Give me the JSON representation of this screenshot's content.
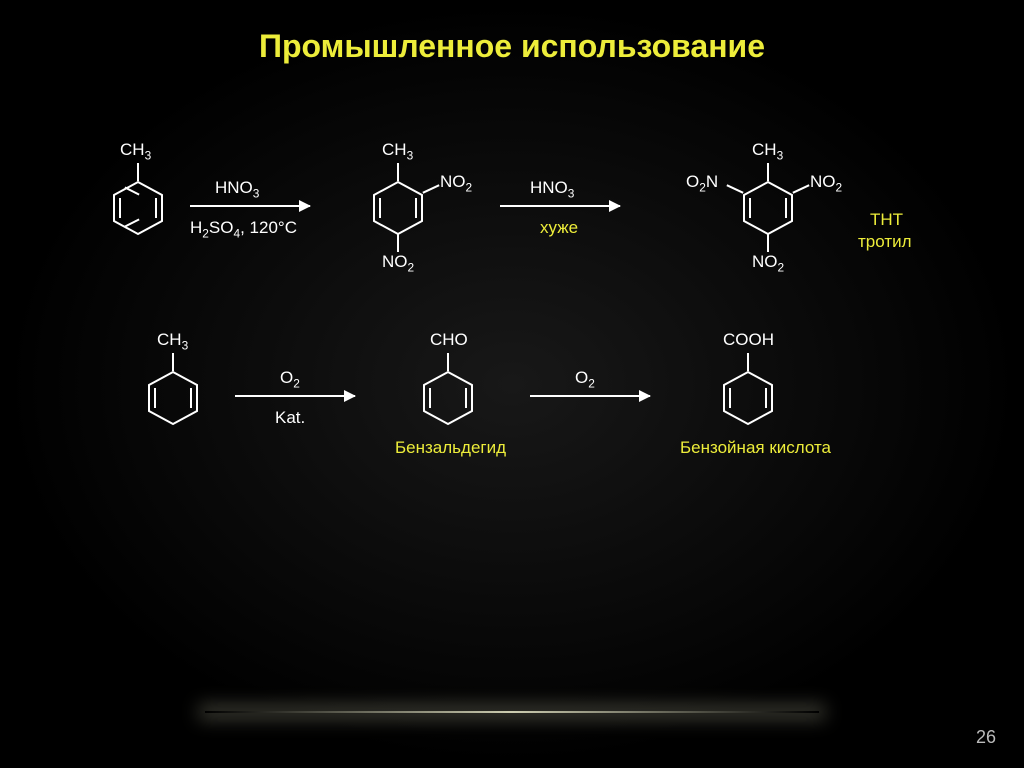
{
  "title": "Промышленное использование",
  "page_number": "26",
  "colors": {
    "title": "#eded3a",
    "accent": "#eded3a",
    "text": "#ffffff",
    "bg_outer": "#000000",
    "bg_inner": "#181818"
  },
  "reactions": {
    "row1": {
      "mol1": {
        "top_group": "CH3"
      },
      "arrow1": {
        "top": "HNO3",
        "bottom": "H2SO4, 120°C"
      },
      "mol2": {
        "top": "CH3",
        "ortho_right": "NO2",
        "para": "NO2"
      },
      "arrow2": {
        "top": "HNO3",
        "bottom": "хуже"
      },
      "mol3": {
        "top": "CH3",
        "ortho_left": "O2N",
        "ortho_right": "NO2",
        "para": "NO2",
        "label1": "ТНТ",
        "label2": "тротил"
      }
    },
    "row2": {
      "mol1": {
        "top_group": "CH3"
      },
      "arrow1": {
        "top": "O2",
        "bottom": "Kat."
      },
      "mol2": {
        "top_group": "CHO",
        "caption": "Бензальдегид"
      },
      "arrow2": {
        "top": "O2"
      },
      "mol3": {
        "top_group": "COOH",
        "caption": "Бензойная кислота"
      }
    }
  }
}
